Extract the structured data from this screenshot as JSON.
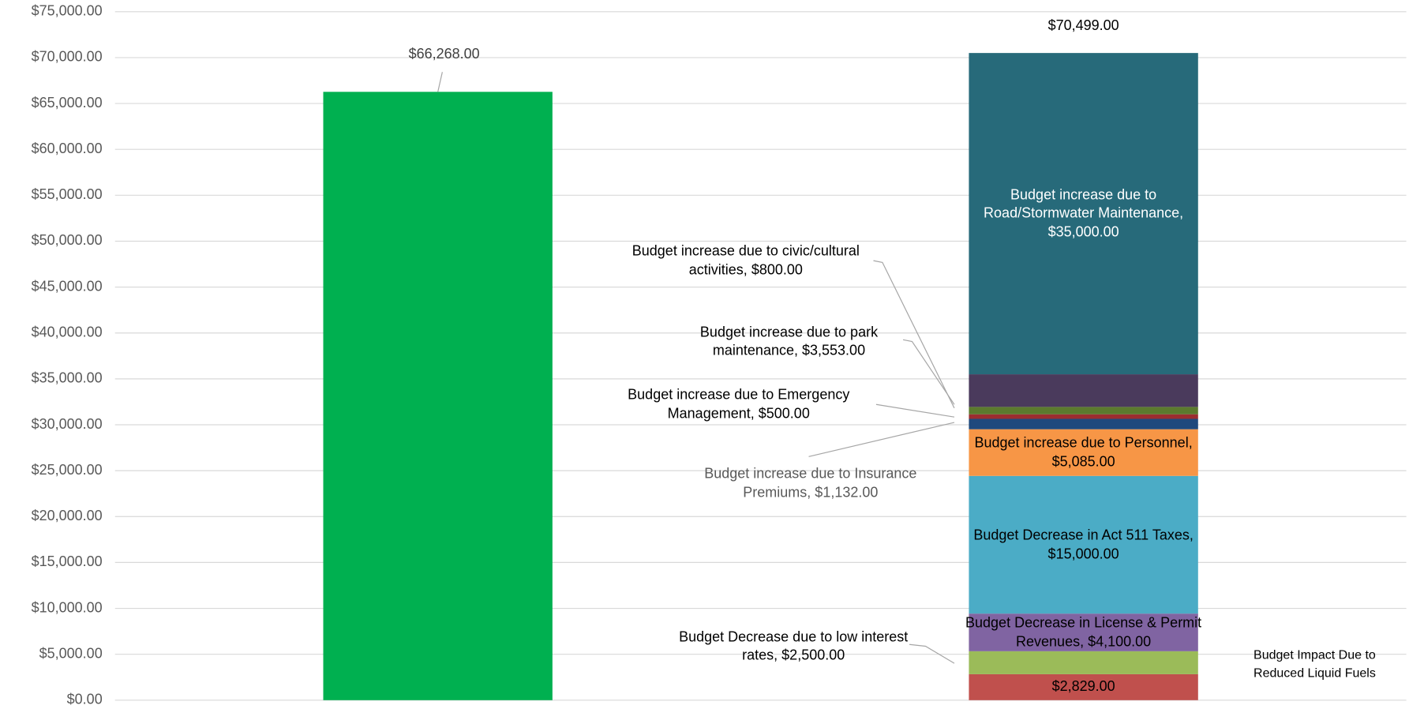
{
  "chart_data": {
    "type": "stacked_bar",
    "categories": [
      null,
      null
    ],
    "ylim": [
      0,
      75000
    ],
    "yticks": [
      {
        "value": 0,
        "label": "$0.00"
      },
      {
        "value": 5000,
        "label": "$5,000.00"
      },
      {
        "value": 10000,
        "label": "$10,000.00"
      },
      {
        "value": 15000,
        "label": "$15,000.00"
      },
      {
        "value": 20000,
        "label": "$20,000.00"
      },
      {
        "value": 25000,
        "label": "$25,000.00"
      },
      {
        "value": 30000,
        "label": "$30,000.00"
      },
      {
        "value": 35000,
        "label": "$35,000.00"
      },
      {
        "value": 40000,
        "label": "$40,000.00"
      },
      {
        "value": 45000,
        "label": "$45,000.00"
      },
      {
        "value": 50000,
        "label": "$50,000.00"
      },
      {
        "value": 55000,
        "label": "$55,000.00"
      },
      {
        "value": 60000,
        "label": "$60,000.00"
      },
      {
        "value": 65000,
        "label": "$65,000.00"
      },
      {
        "value": 70000,
        "label": "$70,000.00"
      },
      {
        "value": 75000,
        "label": "$75,000.00"
      }
    ],
    "grid": true,
    "series": [
      {
        "color": "#00b050",
        "values": [
          66268,
          null
        ],
        "value_labels": [
          "$66,268.00",
          null
        ]
      },
      {
        "name": "Budget Impact Due to Reduced Liquid Fuels",
        "color": "#c0504d",
        "values": [
          null,
          2829
        ],
        "value_labels": [
          null,
          "$2,829.00"
        ]
      },
      {
        "name": "Budget Decrease due to low interest rates,",
        "color": "#9bbb59",
        "values": [
          null,
          2500
        ],
        "value_labels": [
          null,
          "$2,500.00"
        ]
      },
      {
        "name": "Budget Decrease in License & Permit Revenues,",
        "color": "#8064a2",
        "values": [
          null,
          4100
        ],
        "value_labels": [
          null,
          "$4,100.00"
        ]
      },
      {
        "name": "Budget Decrease in Act 511 Taxes,",
        "color": "#4bacc6",
        "values": [
          null,
          15000
        ],
        "value_labels": [
          null,
          "$15,000.00"
        ]
      },
      {
        "name": "Budget increase due to Personnel,",
        "color": "#f79646",
        "values": [
          null,
          5085
        ],
        "value_labels": [
          null,
          "$5,085.00"
        ]
      },
      {
        "name": "Budget increase due to Insurance Premiums,",
        "color": "#1f497d",
        "values": [
          null,
          1132
        ],
        "value_labels": [
          null,
          "$1,132.00"
        ]
      },
      {
        "name": "Budget increase due to Emergency Management,",
        "color": "#9b2d30",
        "values": [
          null,
          500
        ],
        "value_labels": [
          null,
          "$500.00"
        ]
      },
      {
        "name": "Budget increase due to civic/cultural activities,",
        "color": "#5b7a2e",
        "values": [
          null,
          800
        ],
        "value_labels": [
          null,
          "$800.00"
        ]
      },
      {
        "name": "Budget increase due to park maintenance,",
        "color": "#4a3a5c",
        "values": [
          null,
          3553
        ],
        "value_labels": [
          null,
          "$3,553.00"
        ]
      },
      {
        "name": "Budget increase due to Road/Stormwater Maintenance,",
        "color": "#276a7a",
        "values": [
          null,
          35000
        ],
        "value_labels": [
          null,
          "$35,000.00"
        ]
      }
    ],
    "totals": [
      null,
      70499
    ],
    "total_labels": [
      null,
      "$70,499.00"
    ]
  }
}
